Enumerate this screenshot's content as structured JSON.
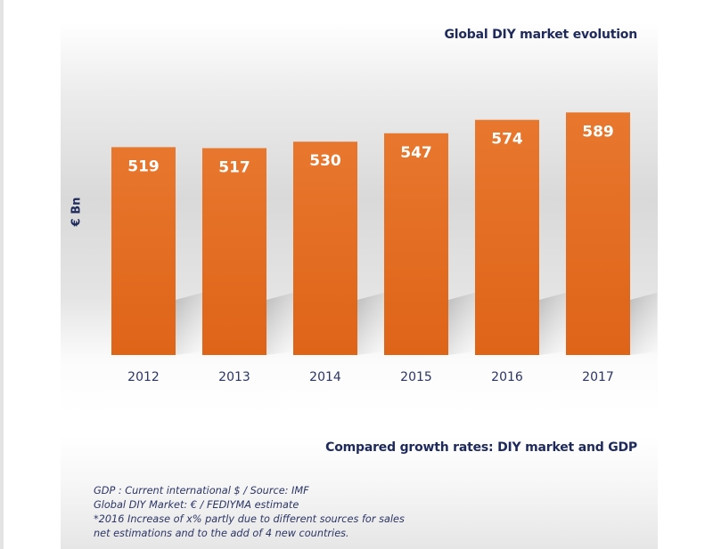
{
  "chart_data": {
    "type": "bar",
    "title": "Global DIY market evolution",
    "xlabel": "",
    "ylabel": "€ Bn",
    "categories": [
      "2012",
      "2013",
      "2014",
      "2015",
      "2016",
      "2017"
    ],
    "values": [
      519,
      517,
      530,
      547,
      574,
      589
    ],
    "data_labels": [
      "519",
      "517",
      "530",
      "547",
      "574",
      "589"
    ],
    "ylim": [
      100,
      760
    ],
    "grid": false,
    "legend": "none",
    "bar_color": "#e8772e",
    "bar_color_bottom": "#de6418",
    "label_color": "#ffffff"
  },
  "section2": {
    "title": "Compared growth rates: DIY market and GDP"
  },
  "notes": [
    "GDP : Current international $ / Source: IMF",
    "Global DIY Market: € / FEDIYMA estimate",
    "*2016 Increase of x% partly due to different sources for sales",
    "net estimations and to the add of 4 new countries."
  ],
  "colors": {
    "title": "#1f2a5c",
    "text": "#2b3566"
  }
}
